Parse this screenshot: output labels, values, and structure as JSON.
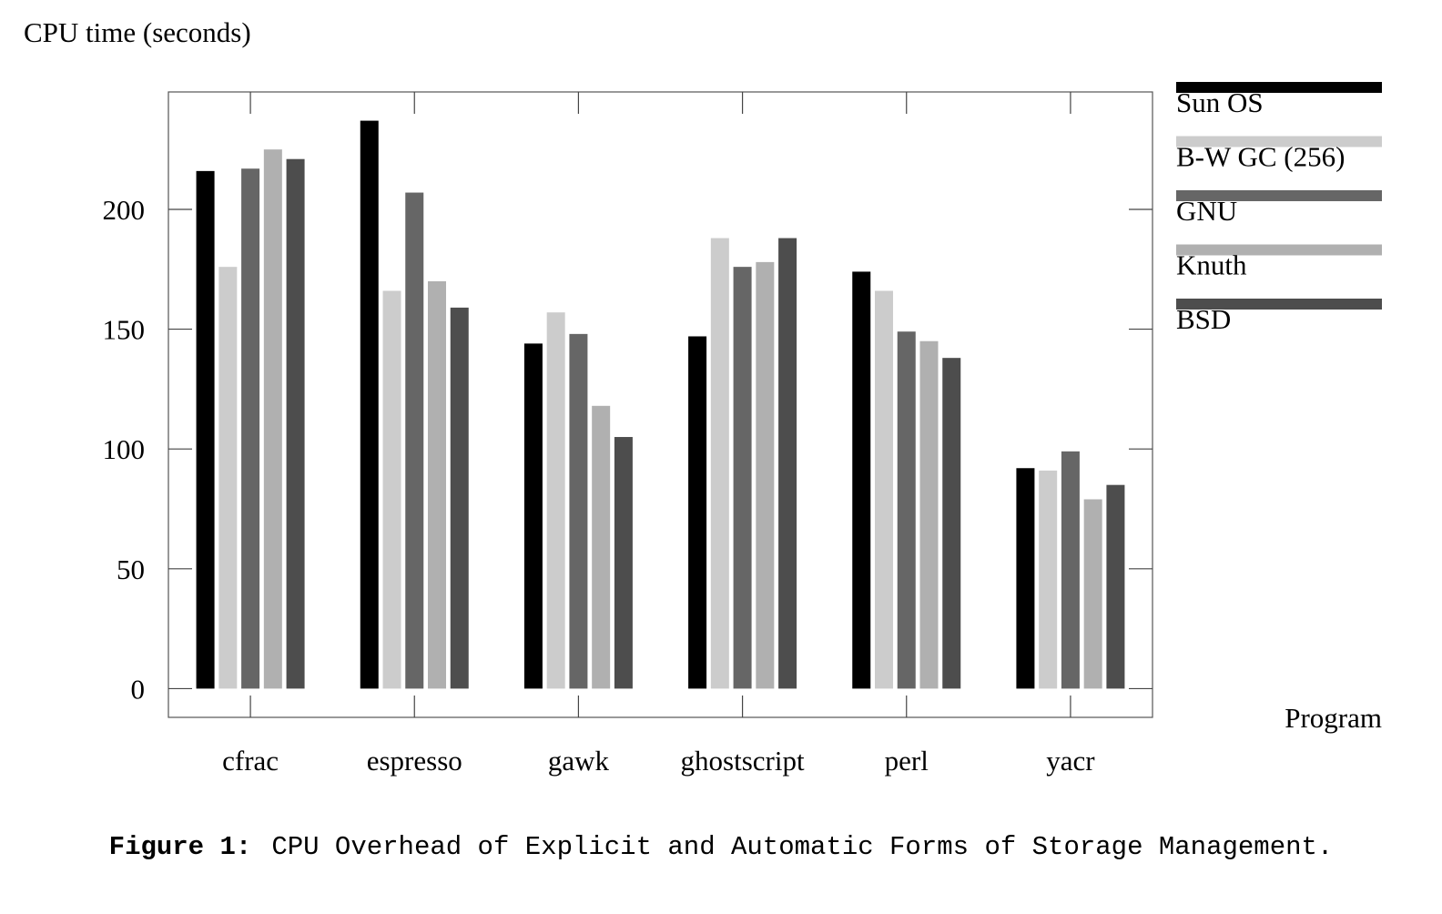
{
  "chart_data": {
    "type": "bar",
    "ylabel": "CPU time (seconds)",
    "xlabel": "Program",
    "categories": [
      "cfrac",
      "espresso",
      "gawk",
      "ghostscript",
      "perl",
      "yacr"
    ],
    "yticks": [
      0,
      50,
      100,
      150,
      200
    ],
    "ylim": [
      -12,
      249
    ],
    "grid": false,
    "legend_position": "right",
    "series": [
      {
        "name": "Sun OS",
        "color": "#000000",
        "values": [
          216,
          237,
          144,
          147,
          174,
          92
        ]
      },
      {
        "name": "B-W GC (256)",
        "color": "#cccccc",
        "values": [
          176,
          166,
          157,
          188,
          166,
          91
        ]
      },
      {
        "name": "GNU",
        "color": "#666666",
        "values": [
          217,
          207,
          148,
          176,
          149,
          99
        ]
      },
      {
        "name": "Knuth",
        "color": "#b0b0b0",
        "values": [
          225,
          170,
          118,
          178,
          145,
          79
        ]
      },
      {
        "name": "BSD",
        "color": "#4d4d4d",
        "values": [
          221,
          159,
          105,
          188,
          138,
          85
        ]
      }
    ]
  },
  "caption": {
    "label": "Figure 1:",
    "text": "CPU Overhead of Explicit and Automatic Forms of Storage Management."
  }
}
